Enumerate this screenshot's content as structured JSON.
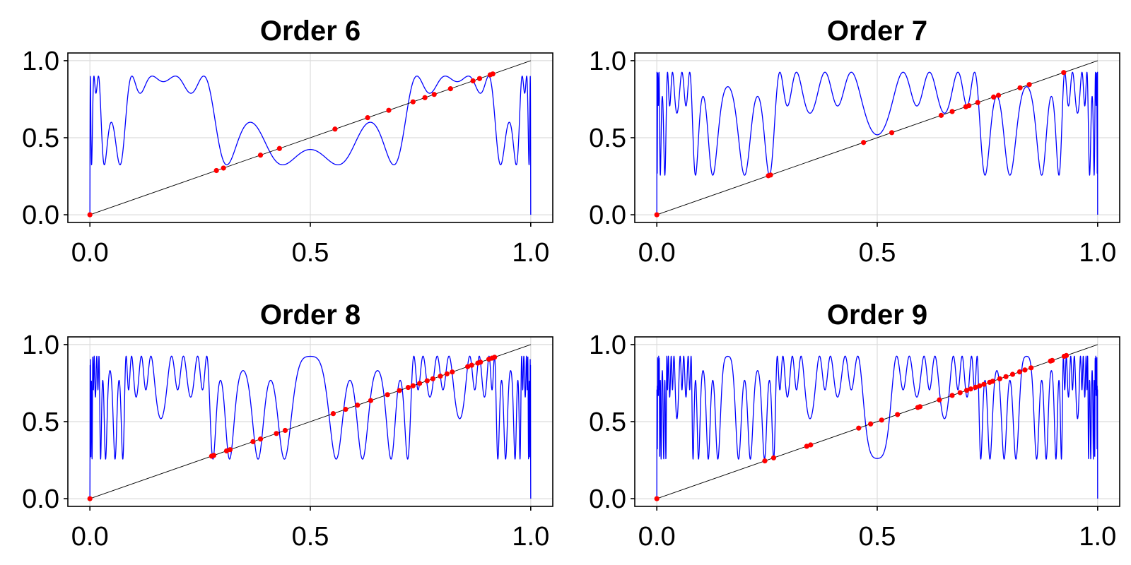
{
  "chart_data": [
    {
      "type": "line",
      "title": "Order 6",
      "order": 6,
      "map": "iterated logistic map x -> r*x*(1-x), r = 3.6 (peak about 0.9)",
      "r": 3.6,
      "xlim": [
        -0.05,
        1.05
      ],
      "ylim": [
        -0.05,
        1.05
      ],
      "xticks": [
        "0.0",
        "0.5",
        "1.0"
      ],
      "yticks": [
        "0.0",
        "0.5",
        "1.0"
      ],
      "grid": true,
      "series": [
        {
          "kind": "curve",
          "color": "#0000ff"
        },
        {
          "kind": "identity",
          "color": "#000000",
          "x": [
            0,
            1
          ],
          "y": [
            0,
            1
          ]
        },
        {
          "kind": "fixed-points",
          "color": "#ff0000",
          "x": [
            0.0,
            0.287,
            0.303,
            0.387,
            0.43,
            0.556,
            0.63,
            0.678,
            0.733,
            0.76,
            0.781,
            0.818,
            0.869,
            0.884,
            0.908,
            0.914
          ]
        }
      ]
    },
    {
      "type": "line",
      "title": "Order 7",
      "order": 7,
      "map": "iterated logistic map x -> r*x*(1-x), r = 3.7",
      "r": 3.7,
      "xlim": [
        -0.05,
        1.05
      ],
      "ylim": [
        -0.05,
        1.05
      ],
      "xticks": [
        "0.0",
        "0.5",
        "1.0"
      ],
      "yticks": [
        "0.0",
        "0.5",
        "1.0"
      ],
      "grid": true,
      "series": [
        {
          "kind": "curve",
          "color": "#0000ff"
        },
        {
          "kind": "identity",
          "color": "#000000",
          "x": [
            0,
            1
          ],
          "y": [
            0,
            1
          ]
        },
        {
          "kind": "fixed-points",
          "color": "#ff0000",
          "x": [
            0.0,
            0.253,
            0.258,
            0.469,
            0.533,
            0.645,
            0.67,
            0.701,
            0.708,
            0.728,
            0.764,
            0.775,
            0.824,
            0.845,
            0.923
          ]
        }
      ]
    },
    {
      "type": "line",
      "title": "Order 8",
      "order": 8,
      "map": "iterated logistic map x -> r*x*(1-x), r = 3.7",
      "r": 3.7,
      "xlim": [
        -0.05,
        1.05
      ],
      "ylim": [
        -0.05,
        1.05
      ],
      "xticks": [
        "0.0",
        "0.5",
        "1.0"
      ],
      "yticks": [
        "0.0",
        "0.5",
        "1.0"
      ],
      "grid": true,
      "series": [
        {
          "kind": "curve",
          "color": "#0000ff"
        },
        {
          "kind": "identity",
          "color": "#000000",
          "x": [
            0,
            1
          ],
          "y": [
            0,
            1
          ]
        },
        {
          "kind": "fixed-points",
          "color": "#ff0000",
          "x": [
            0.0,
            0.276,
            0.281,
            0.31,
            0.318,
            0.37,
            0.387,
            0.423,
            0.443,
            0.552,
            0.58,
            0.607,
            0.637,
            0.675,
            0.702,
            0.722,
            0.733,
            0.748,
            0.765,
            0.778,
            0.795,
            0.81,
            0.822,
            0.857,
            0.866,
            0.88,
            0.886,
            0.905,
            0.912,
            0.918
          ]
        }
      ]
    },
    {
      "type": "line",
      "title": "Order 9",
      "order": 9,
      "map": "iterated logistic map x -> r*x*(1-x), r = 3.7",
      "r": 3.7,
      "xlim": [
        -0.05,
        1.05
      ],
      "ylim": [
        -0.05,
        1.05
      ],
      "xticks": [
        "0.0",
        "0.5",
        "1.0"
      ],
      "yticks": [
        "0.0",
        "0.5",
        "1.0"
      ],
      "grid": true,
      "series": [
        {
          "kind": "curve",
          "color": "#0000ff"
        },
        {
          "kind": "identity",
          "color": "#000000",
          "x": [
            0,
            1
          ],
          "y": [
            0,
            1
          ]
        },
        {
          "kind": "fixed-points",
          "color": "#ff0000",
          "x": [
            0.0,
            0.245,
            0.265,
            0.34,
            0.349,
            0.458,
            0.485,
            0.51,
            0.546,
            0.592,
            0.597,
            0.641,
            0.67,
            0.688,
            0.703,
            0.712,
            0.723,
            0.732,
            0.742,
            0.755,
            0.762,
            0.778,
            0.792,
            0.807,
            0.823,
            0.835,
            0.849,
            0.893,
            0.897,
            0.924,
            0.929
          ]
        }
      ]
    }
  ]
}
